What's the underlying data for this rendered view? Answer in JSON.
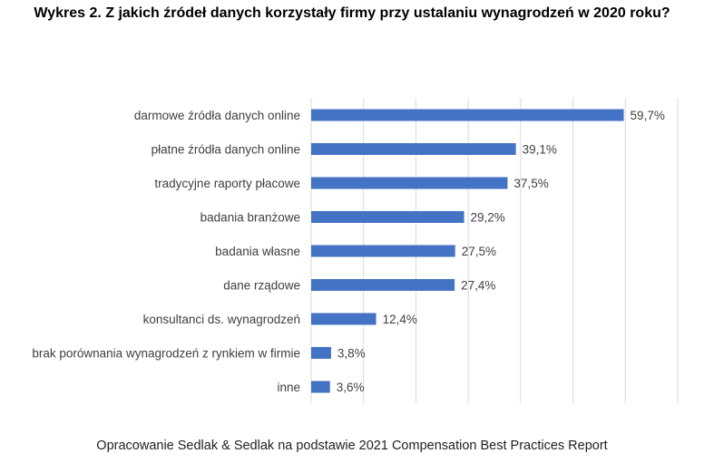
{
  "chart_data": {
    "type": "bar",
    "orientation": "horizontal",
    "title": "Wykres 2. Z jakich źródeł danych korzystały firmy przy ustalaniu wynagrodzeń w 2020 roku?",
    "categories": [
      "darmowe źródła danych online",
      "płatne źródła danych online",
      "tradycyjne raporty płacowe",
      "badania branżowe",
      "badania własne",
      "dane rządowe",
      "konsultanci ds. wynagrodzeń",
      "brak porównania wynagrodzeń z rynkiem w firmie",
      "inne"
    ],
    "values": [
      59.7,
      39.1,
      37.5,
      29.2,
      27.5,
      27.4,
      12.4,
      3.8,
      3.6
    ],
    "data_labels": [
      "59,7%",
      "39,1%",
      "37,5%",
      "29,2%",
      "27,5%",
      "27,4%",
      "12,4%",
      "3,8%",
      "3,6%"
    ],
    "xlim": [
      0,
      70
    ],
    "grid": true,
    "legend": "none",
    "bar_color": "#4472c4",
    "grid_color": "#d9d9d9"
  },
  "source_note": "Opracowanie Sedlak & Sedlak na podstawie 2021 Compensation Best Practices Report"
}
